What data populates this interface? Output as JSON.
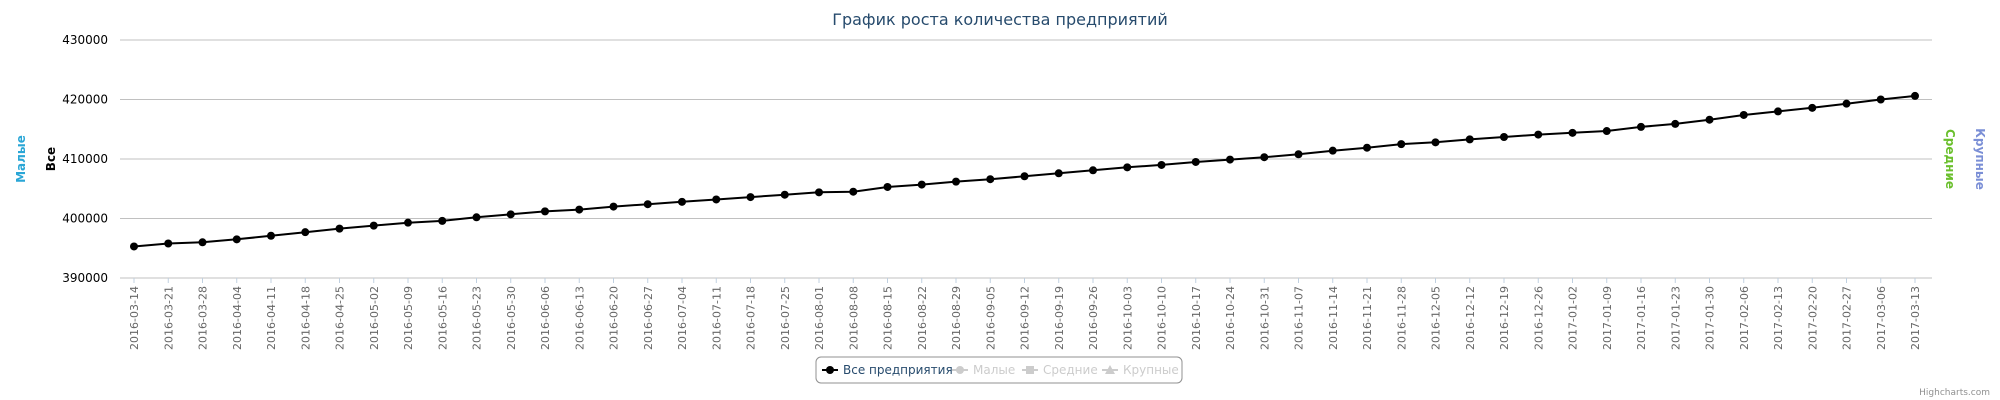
{
  "chart_data": {
    "type": "line",
    "title": "График роста количества предприятий",
    "ylim": [
      390000,
      430000
    ],
    "ytick_labels": [
      "390000",
      "400000",
      "410000",
      "420000",
      "430000"
    ],
    "y_axes": [
      {
        "label": "Малые",
        "color": "#2aa6d6"
      },
      {
        "label": "Все",
        "color": "#000000"
      },
      {
        "label": "Средние",
        "color": "#6abf2c"
      },
      {
        "label": "Крупные",
        "color": "#7b8fd6"
      }
    ],
    "x": [
      "2016-03-14",
      "2016-03-21",
      "2016-03-28",
      "2016-04-04",
      "2016-04-11",
      "2016-04-18",
      "2016-04-25",
      "2016-05-02",
      "2016-05-09",
      "2016-05-16",
      "2016-05-23",
      "2016-05-30",
      "2016-06-06",
      "2016-06-13",
      "2016-06-20",
      "2016-06-27",
      "2016-07-04",
      "2016-07-11",
      "2016-07-18",
      "2016-07-25",
      "2016-08-01",
      "2016-08-08",
      "2016-08-15",
      "2016-08-22",
      "2016-08-29",
      "2016-09-05",
      "2016-09-12",
      "2016-09-19",
      "2016-09-26",
      "2016-10-03",
      "2016-10-10",
      "2016-10-17",
      "2016-10-24",
      "2016-10-31",
      "2016-11-07",
      "2016-11-14",
      "2016-11-21",
      "2016-11-28",
      "2016-12-05",
      "2016-12-12",
      "2016-12-19",
      "2016-12-26",
      "2017-01-02",
      "2017-01-09",
      "2017-01-16",
      "2017-01-23",
      "2017-01-30",
      "2017-02-06",
      "2017-02-13",
      "2017-02-20",
      "2017-02-27",
      "2017-03-06",
      "2017-03-13"
    ],
    "series": [
      {
        "name": "Все предприятия",
        "color": "#000000",
        "visible": true,
        "values": [
          395300,
          395800,
          396000,
          396500,
          397100,
          397700,
          398300,
          398800,
          399300,
          399600,
          400200,
          400700,
          401200,
          401500,
          402000,
          402400,
          402800,
          403200,
          403600,
          404000,
          404400,
          404500,
          405300,
          405700,
          406200,
          406600,
          407100,
          407600,
          408100,
          408600,
          409000,
          409500,
          409900,
          410300,
          410800,
          411400,
          411900,
          412500,
          412800,
          413300,
          413700,
          414100,
          414400,
          414700,
          415400,
          415900,
          416600,
          417400,
          418000,
          418600,
          419300,
          420000,
          420600
        ]
      },
      {
        "name": "Малые",
        "color": "#cccccc",
        "visible": false,
        "marker": "circle"
      },
      {
        "name": "Средние",
        "color": "#cccccc",
        "visible": false,
        "marker": "square"
      },
      {
        "name": "Крупные",
        "color": "#cccccc",
        "visible": false,
        "marker": "triangle"
      }
    ],
    "grid": true,
    "legend_position": "bottom-center"
  },
  "credits": "Highcharts.com"
}
